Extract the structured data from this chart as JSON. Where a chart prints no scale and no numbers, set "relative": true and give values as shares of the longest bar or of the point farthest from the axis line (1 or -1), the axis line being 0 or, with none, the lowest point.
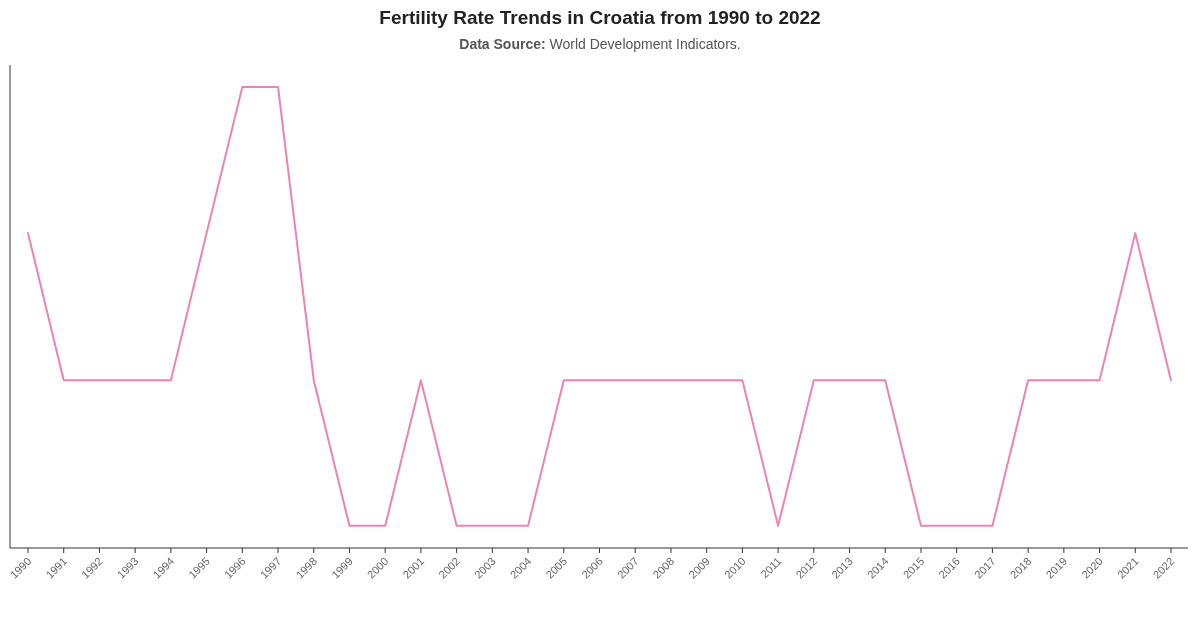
{
  "chart_data": {
    "type": "line",
    "title": "Fertility Rate Trends in Croatia from 1990 to 2022",
    "subtitle": "Data Source: World Development Indicators.",
    "relative": true,
    "categories": [
      "1990",
      "1991",
      "1992",
      "1993",
      "1994",
      "1995",
      "1996",
      "1997",
      "1998",
      "1999",
      "2000",
      "2001",
      "2002",
      "2003",
      "2004",
      "2005",
      "2006",
      "2007",
      "2008",
      "2009",
      "2010",
      "2011",
      "2012",
      "2013",
      "2014",
      "2015",
      "2016",
      "2017",
      "2018",
      "2019",
      "2020",
      "2021",
      "2022"
    ],
    "series": [
      {
        "color": "#ee82b0",
        "values": [
          0.683,
          0.364,
          0.364,
          0.364,
          0.364,
          0.683,
          1,
          1,
          0.364,
          0.048,
          0.048,
          0.364,
          0.048,
          0.048,
          0.048,
          0.364,
          0.364,
          0.364,
          0.364,
          0.364,
          0.364,
          0.048,
          0.364,
          0.364,
          0.364,
          0.048,
          0.048,
          0.048,
          0.364,
          0.364,
          0.364,
          0.683,
          0.364
        ]
      }
    ],
    "marker": "none",
    "line_style": "solid"
  }
}
